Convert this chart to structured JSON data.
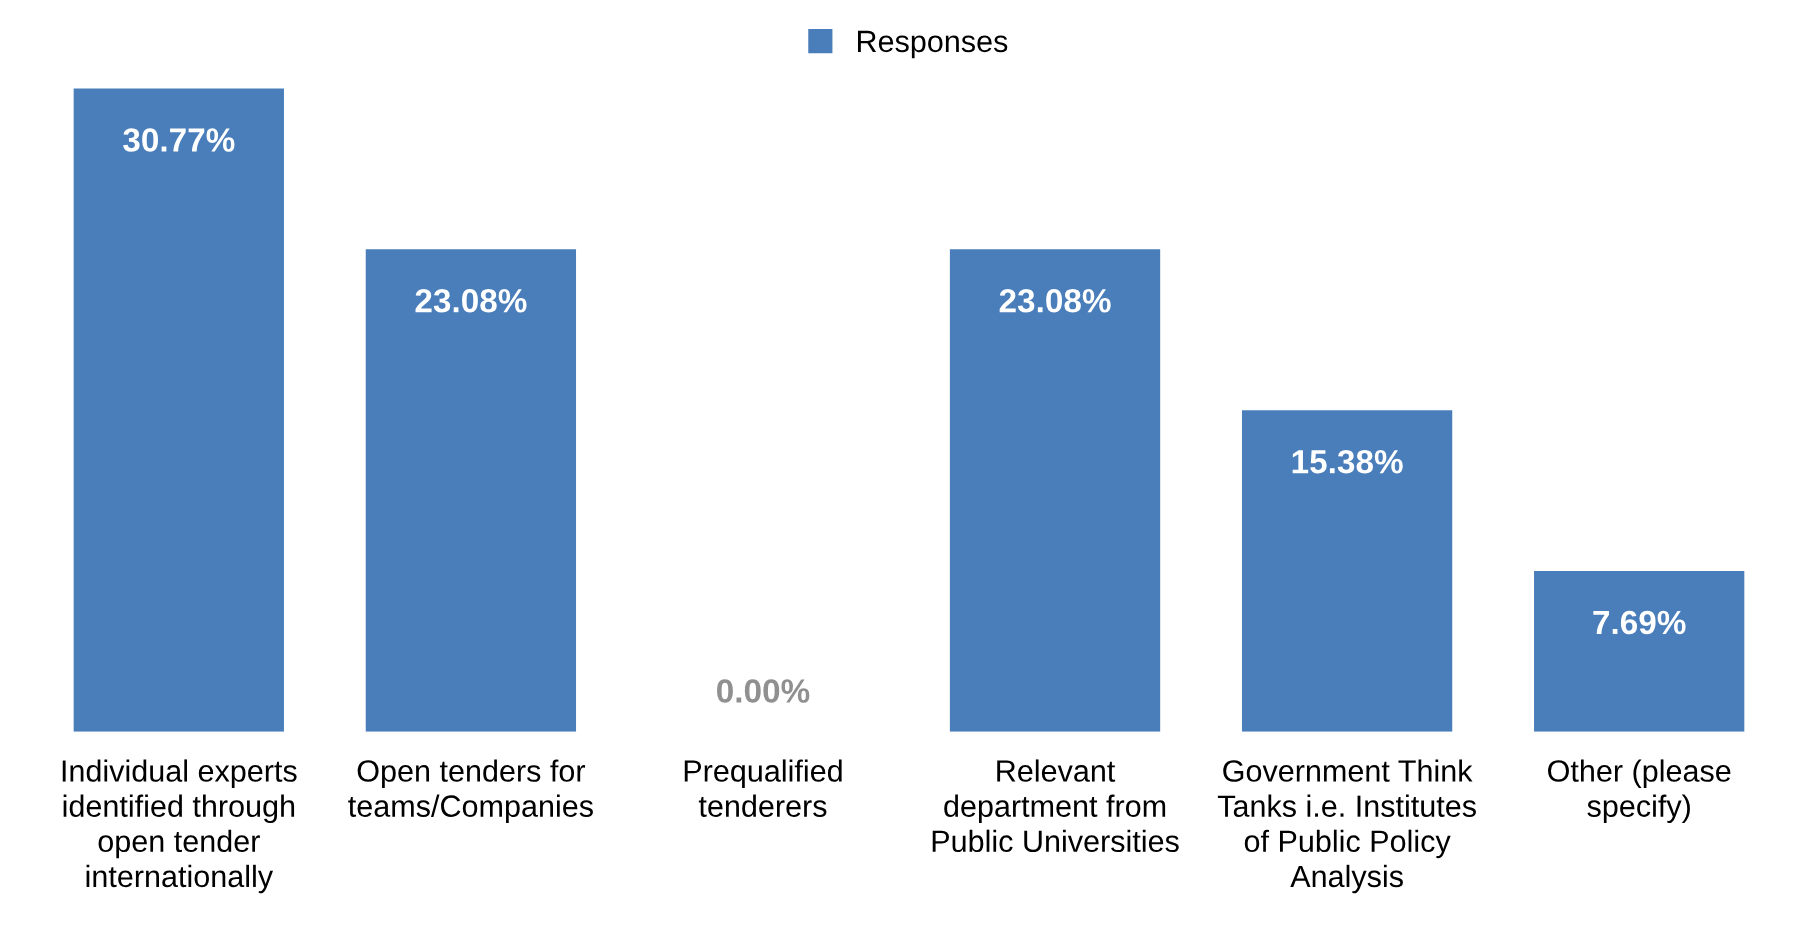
{
  "chart_data": {
    "type": "bar",
    "categories": [
      "Individual experts\nidentified through\nopen tender\ninternationally",
      "Open tenders for\nteams/Companies",
      "Prequalified\ntenderers",
      "Relevant\ndepartment from\nPublic Universities",
      "Government Think\nTanks i.e. Institutes\nof Public Policy\nAnalysis",
      "Other (please\nspecify)"
    ],
    "series": [
      {
        "name": "Responses",
        "color": "#4a7ebb",
        "values": [
          30.77,
          23.08,
          0.0,
          23.08,
          15.38,
          7.69
        ],
        "value_labels": [
          "30.77%",
          "23.08%",
          "0.00%",
          "23.08%",
          "15.38%",
          "7.69%"
        ]
      }
    ],
    "legend": "top",
    "grid": false
  }
}
